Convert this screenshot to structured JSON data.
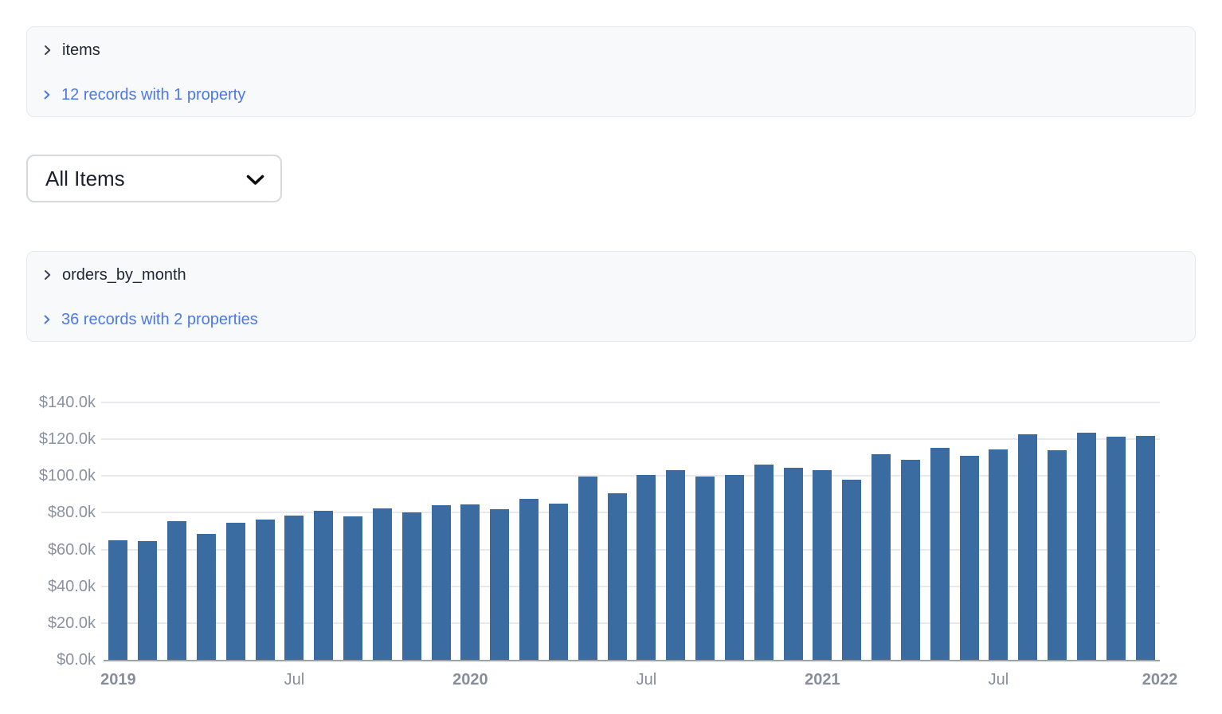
{
  "panels": {
    "items": {
      "title": "items",
      "summary": "12 records with 1 property"
    },
    "orders": {
      "title": "orders_by_month",
      "summary": "36 records with 2 properties"
    }
  },
  "filter": {
    "selected": "All Items"
  },
  "colors": {
    "bar": "#3a6ba1",
    "link": "#4c79e6",
    "axis_text": "#8a92a0",
    "gridline": "#e9e9ed",
    "baseline": "#9aa2ac",
    "panel_bg": "#f8f9fb",
    "panel_border": "#e7e9ec"
  },
  "chart_data": {
    "type": "bar",
    "title": "",
    "xlabel": "",
    "ylabel": "",
    "grid": true,
    "legend": false,
    "ylim": [
      0,
      140000
    ],
    "x": [
      "2019-01",
      "2019-02",
      "2019-03",
      "2019-04",
      "2019-05",
      "2019-06",
      "2019-07",
      "2019-08",
      "2019-09",
      "2019-10",
      "2019-11",
      "2019-12",
      "2020-01",
      "2020-02",
      "2020-03",
      "2020-04",
      "2020-05",
      "2020-06",
      "2020-07",
      "2020-08",
      "2020-09",
      "2020-10",
      "2020-11",
      "2020-12",
      "2021-01",
      "2021-02",
      "2021-03",
      "2021-04",
      "2021-05",
      "2021-06",
      "2021-07",
      "2021-08",
      "2021-09",
      "2021-10",
      "2021-11",
      "2021-12"
    ],
    "values": [
      65000,
      64500,
      75500,
      68500,
      74500,
      76500,
      78500,
      81000,
      78000,
      82500,
      80000,
      84000,
      84500,
      82000,
      87500,
      85000,
      99500,
      90500,
      100500,
      103000,
      99500,
      100500,
      106000,
      104500,
      103000,
      98000,
      112000,
      109000,
      115500,
      111000,
      114500,
      122500,
      114000,
      123500,
      121500,
      122000
    ],
    "y_ticks": [
      {
        "value": 0,
        "label": "$0.0k"
      },
      {
        "value": 20000,
        "label": "$20.0k"
      },
      {
        "value": 40000,
        "label": "$40.0k"
      },
      {
        "value": 60000,
        "label": "$60.0k"
      },
      {
        "value": 80000,
        "label": "$80.0k"
      },
      {
        "value": 100000,
        "label": "$100.0k"
      },
      {
        "value": 120000,
        "label": "$120.0k"
      },
      {
        "value": 140000,
        "label": "$140.0k"
      }
    ],
    "x_ticks": [
      {
        "index": 0,
        "label": "2019",
        "bold": true
      },
      {
        "index": 6,
        "label": "Jul",
        "bold": false
      },
      {
        "index": 12,
        "label": "2020",
        "bold": true
      },
      {
        "index": 18,
        "label": "Jul",
        "bold": false
      },
      {
        "index": 24,
        "label": "2021",
        "bold": true
      },
      {
        "index": 30,
        "label": "Jul",
        "bold": false
      },
      {
        "index": 36,
        "label": "2022",
        "bold": true
      }
    ]
  }
}
